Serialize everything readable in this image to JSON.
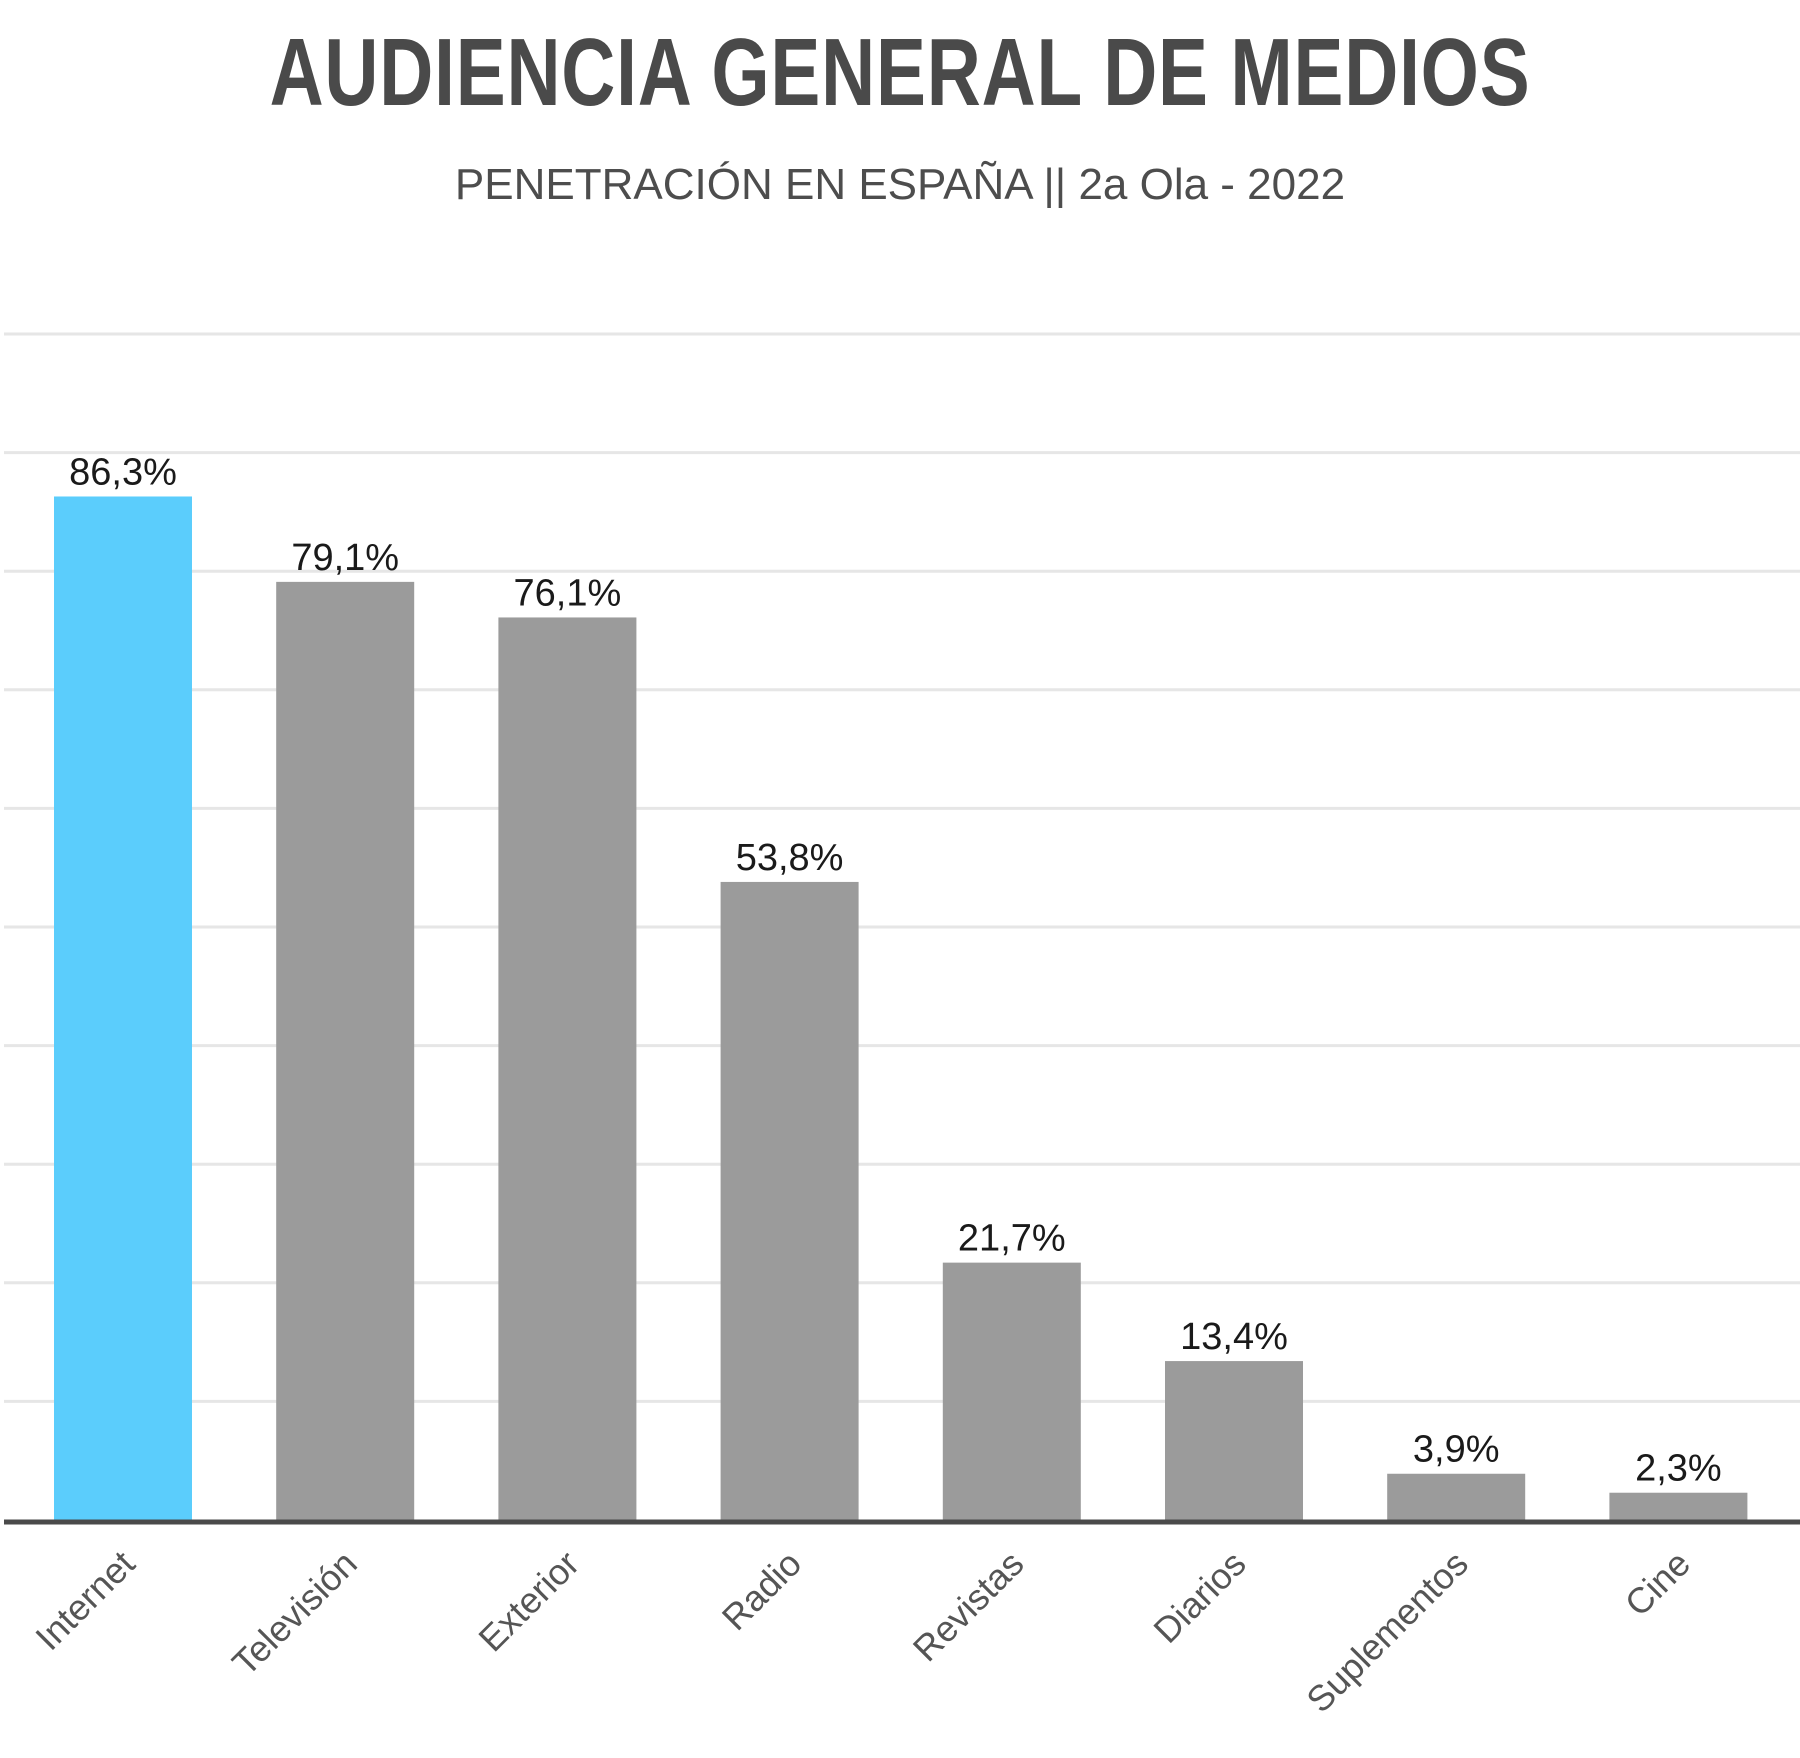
{
  "header": {
    "title": "AUDIENCIA GENERAL DE MEDIOS",
    "subtitle": "PENETRACIÓN EN ESPAÑA || 2a Ola - 2022"
  },
  "colors": {
    "highlight": "#5bcdfc",
    "bar": "#9b9b9b",
    "grid": "#e6e6e6",
    "axis": "#4a4a4a"
  },
  "chart_data": {
    "type": "bar",
    "title": "AUDIENCIA GENERAL DE MEDIOS",
    "subtitle": "PENETRACIÓN EN ESPAÑA || 2a Ola - 2022",
    "categories": [
      "Internet",
      "Televisión",
      "Exterior",
      "Radio",
      "Revistas",
      "Diarios",
      "Suplementos",
      "Cine"
    ],
    "values": [
      86.3,
      79.1,
      76.1,
      53.8,
      21.7,
      13.4,
      3.9,
      2.3
    ],
    "value_labels": [
      "86,3%",
      "79,1%",
      "76,1%",
      "53,8%",
      "21,7%",
      "13,4%",
      "3,9%",
      "2,3%"
    ],
    "highlight_index": 0,
    "xlabel": "",
    "ylabel": "",
    "ylim": [
      0,
      100
    ],
    "grid": true,
    "grid_step": 10,
    "legend": "none"
  }
}
